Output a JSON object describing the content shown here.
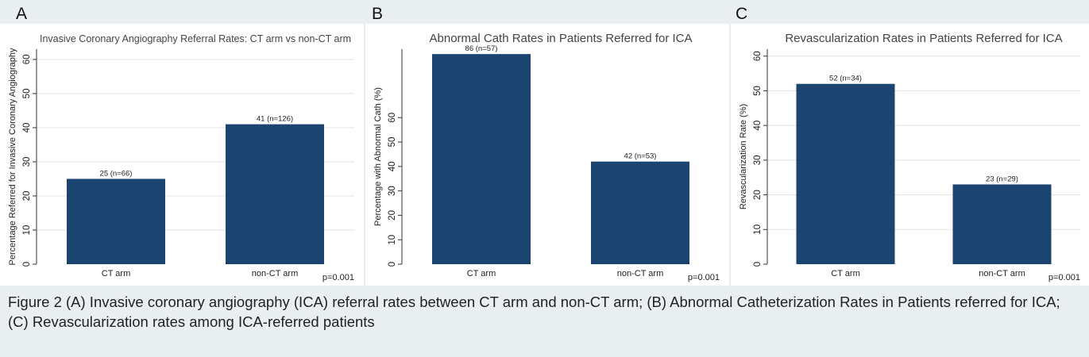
{
  "panels": [
    {
      "letter": "A",
      "chart_data": {
        "type": "bar",
        "title": "Invasive Coronary Angiography Referral Rates: CT arm vs non-CT arm",
        "xlabel": "",
        "ylabel": "Percentage Referred for Invasive Coronary Angiography",
        "categories": [
          "CT arm",
          "non-CT arm"
        ],
        "values": [
          25,
          41
        ],
        "data_labels": [
          "25 (n=66)",
          "41 (n=126)"
        ],
        "yticks": [
          0,
          10,
          20,
          30,
          40,
          50,
          60
        ],
        "ylim": [
          0,
          63
        ],
        "grid": true,
        "bar_color": "#1b4570",
        "annotation": "p=0.001"
      }
    },
    {
      "letter": "B",
      "chart_data": {
        "type": "bar",
        "title": "Abnormal Cath Rates in Patients Referred for ICA",
        "xlabel": "",
        "ylabel": "Percentage with Abnormal Cath (%)",
        "categories": [
          "CT arm",
          "non-CT arm"
        ],
        "values": [
          86,
          42
        ],
        "data_labels": [
          "86 (n=57)",
          "42 (n=53)"
        ],
        "yticks": [
          0,
          10,
          20,
          30,
          40,
          50,
          60
        ],
        "ylim": [
          0,
          88
        ],
        "grid": false,
        "bar_color": "#1b4570",
        "annotation": "p=0.001"
      }
    },
    {
      "letter": "C",
      "chart_data": {
        "type": "bar",
        "title": "Revascularization Rates in Patients Referred for ICA",
        "xlabel": "",
        "ylabel": "Revascularization Rate (%)",
        "categories": [
          "CT arm",
          "non-CT arm"
        ],
        "values": [
          52,
          23
        ],
        "data_labels": [
          "52 (n=34)",
          "23 (n=29)"
        ],
        "yticks": [
          0,
          10,
          20,
          30,
          40,
          50,
          60
        ],
        "ylim": [
          0,
          62
        ],
        "grid": true,
        "bar_color": "#1b4570",
        "annotation": "p=0.001"
      }
    }
  ],
  "caption": "Figure 2 (A) Invasive coronary angiography (ICA) referral rates between CT arm and non-CT arm; (B) Abnormal Catheterization Rates in Patients referred for ICA; (C) Revascularization rates among ICA-referred patients"
}
